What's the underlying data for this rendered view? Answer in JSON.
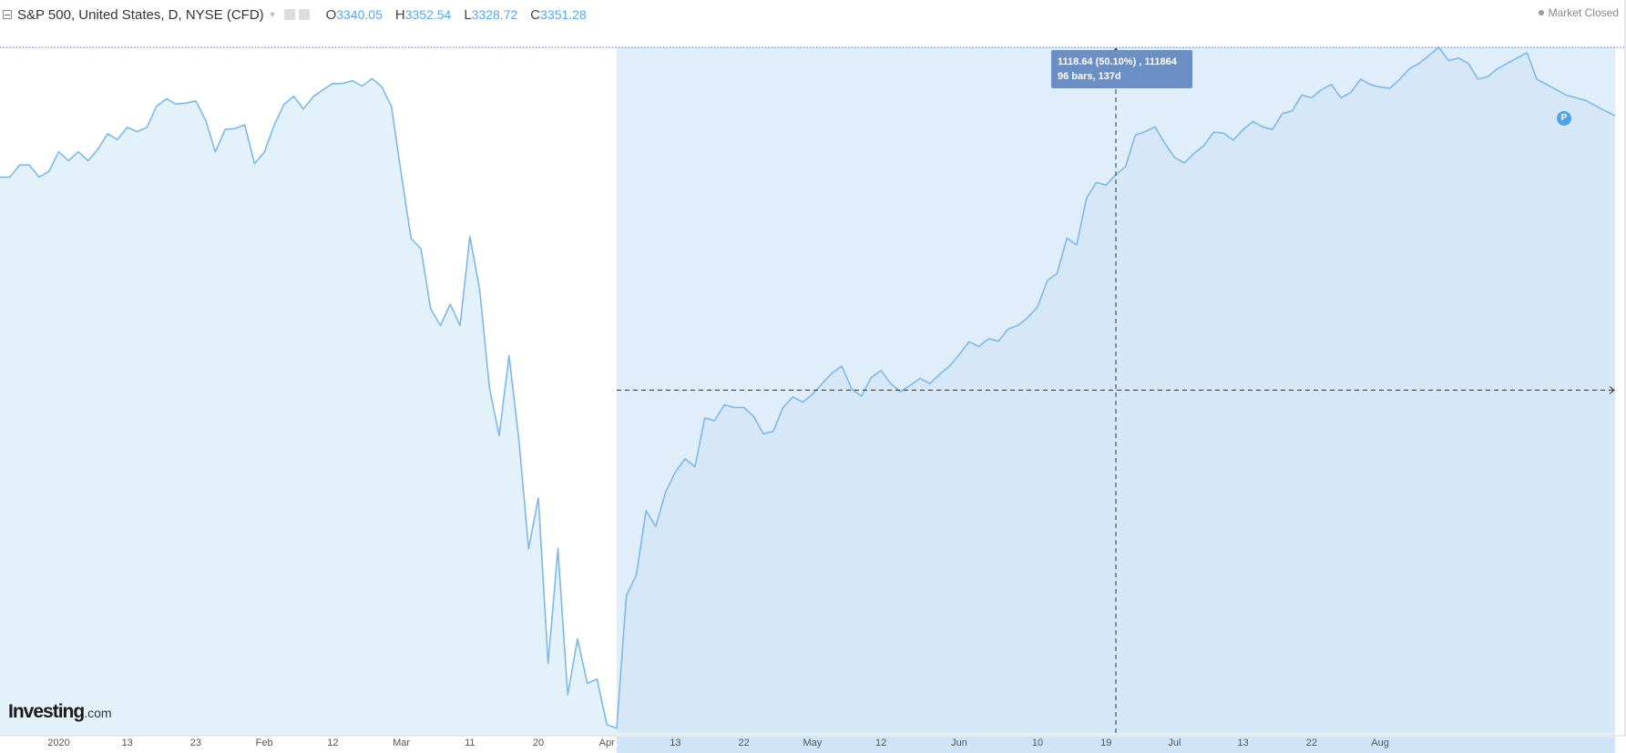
{
  "header": {
    "symbol_title": "S&P 500, United States, D, NYSE (CFD)",
    "ohlc": [
      {
        "label": "O",
        "value": "3340.05"
      },
      {
        "label": "H",
        "value": "3352.54"
      },
      {
        "label": "L",
        "value": "3328.72"
      },
      {
        "label": "C",
        "value": "3351.28"
      }
    ],
    "market_status": "Market Closed"
  },
  "measure_tooltip": {
    "line1": "1118.64 (50.10%) , 111864",
    "line2": "96 bars, 137d"
  },
  "marker_badge": "P",
  "brand": {
    "name": "Investing",
    "suffix": ".com"
  },
  "colors": {
    "line": "#7fb8e6",
    "area": "#e3f1fa",
    "measure_fill": "#cfe4f8",
    "tooltip": "#6b8fc5",
    "axis_highlight": "#cfe4f8"
  },
  "icons": [
    "collapse-icon",
    "dropdown-caret-icon",
    "settings-icon",
    "market-status-dot-icon"
  ],
  "chart_data": {
    "type": "area",
    "title": "S&P 500, United States, D, NYSE (CFD)",
    "x_ticks": [
      "2020",
      "13",
      "23",
      "Feb",
      "12",
      "Mar",
      "11",
      "20",
      "Apr",
      "13",
      "22",
      "May",
      "12",
      "Jun",
      "10",
      "19",
      "Jul",
      "13",
      "22",
      "Aug"
    ],
    "y_unit": "index points",
    "ylim": [
      2180,
      3420
    ],
    "series": [
      {
        "values": [
          3235,
          3235,
          3258,
          3258,
          3235,
          3246,
          3283,
          3266,
          3283,
          3266,
          3288,
          3317,
          3306,
          3329,
          3321,
          3329,
          3369,
          3383,
          3373,
          3375,
          3379,
          3343,
          3283,
          3325,
          3327,
          3334,
          3261,
          3282,
          3333,
          3372,
          3388,
          3364,
          3387,
          3400,
          3412,
          3412,
          3417,
          3407,
          3421,
          3406,
          3368,
          3240,
          3119,
          3100,
          2986,
          2955,
          2995,
          2955,
          3123,
          3024,
          2837,
          2747,
          2898,
          2741,
          2533,
          2629,
          2317,
          2533,
          2257,
          2363,
          2279,
          2287,
          2201,
          2194,
          2445,
          2483,
          2605,
          2575,
          2640,
          2678,
          2703,
          2688,
          2780,
          2775,
          2805,
          2800,
          2800,
          2783,
          2750,
          2755,
          2800,
          2820,
          2810,
          2825,
          2845,
          2865,
          2878,
          2835,
          2821,
          2856,
          2870,
          2845,
          2830,
          2842,
          2855,
          2845,
          2863,
          2878,
          2900,
          2924,
          2915,
          2930,
          2925,
          2948,
          2955,
          2970,
          2990,
          3040,
          3053,
          3120,
          3107,
          3195,
          3225,
          3220,
          3240,
          3255,
          3315,
          3321,
          3330,
          3299,
          3272,
          3262,
          3280,
          3295,
          3320,
          3318,
          3305,
          3325,
          3340,
          3330,
          3325,
          3355,
          3360,
          3390,
          3385,
          3400,
          3410,
          3385,
          3395,
          3420,
          3410,
          3405,
          3403,
          3420,
          3440,
          3450,
          3465,
          3480,
          3455,
          3460,
          3450,
          3420,
          3425,
          3440,
          3450,
          3460,
          3470,
          3420,
          3410,
          3400,
          3390,
          3385,
          3380,
          3370,
          3360,
          3351
        ]
      }
    ],
    "measure": {
      "change": "1118.64",
      "percent": "50.10%",
      "ticks": "111864",
      "bars": "96",
      "days": "137d"
    }
  }
}
